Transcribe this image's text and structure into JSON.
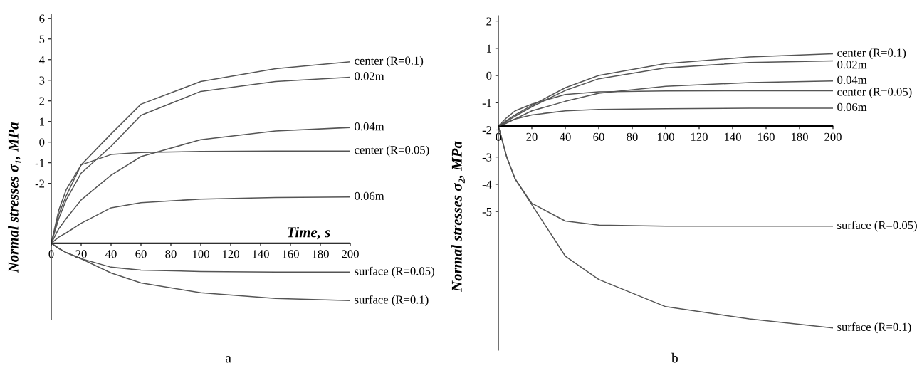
{
  "chart_data": [
    {
      "type": "line",
      "xlabel": "Time, s",
      "ylabel": "Normal stresses σ₁, MPa",
      "annotations": [
        "a"
      ],
      "x": [
        0,
        5,
        10,
        20,
        40,
        60,
        100,
        150,
        200
      ],
      "xlim": [
        0,
        200
      ],
      "xticks": [
        0,
        20,
        40,
        60,
        80,
        100,
        120,
        140,
        160,
        180,
        200
      ],
      "ylim": [
        -8.6,
        6.2
      ],
      "yticks": [
        -2,
        -1,
        0,
        1,
        2,
        3,
        4,
        5,
        6
      ],
      "grid": false,
      "legend": false,
      "marker": "none",
      "line_style": "solid",
      "ref_lines": [
        {
          "axis": "y",
          "value": -4.9,
          "color": "#000000"
        }
      ],
      "series": [
        {
          "name": "center (R=0.1)",
          "color": "#555555",
          "values": [
            -4.9,
            -3.5,
            -2.6,
            -1.1,
            0.4,
            1.84,
            2.94,
            3.56,
            3.9
          ]
        },
        {
          "name": "0.02m",
          "color": "#555555",
          "values": [
            -4.9,
            -3.7,
            -2.8,
            -1.5,
            -0.2,
            1.3,
            2.46,
            2.94,
            3.15
          ]
        },
        {
          "name": "0.04m",
          "color": "#555555",
          "values": [
            -4.9,
            -4.2,
            -3.7,
            -2.8,
            -1.6,
            -0.7,
            0.12,
            0.54,
            0.71
          ]
        },
        {
          "name": "center (R=0.05)",
          "color": "#555555",
          "values": [
            -4.9,
            -3.3,
            -2.3,
            -1.1,
            -0.6,
            -0.5,
            -0.45,
            -0.43,
            -0.43
          ]
        },
        {
          "name": "0.06m",
          "color": "#555555",
          "values": [
            -4.9,
            -4.6,
            -4.4,
            -3.93,
            -3.18,
            -2.93,
            -2.76,
            -2.68,
            -2.66
          ]
        },
        {
          "name": "surface (R=0.05)",
          "color": "#555555",
          "values": [
            -4.9,
            -5.15,
            -5.35,
            -5.65,
            -6.06,
            -6.2,
            -6.27,
            -6.3,
            -6.3
          ]
        },
        {
          "name": "surface (R=0.1)",
          "color": "#555555",
          "values": [
            -4.9,
            -5.15,
            -5.35,
            -5.65,
            -6.34,
            -6.82,
            -7.3,
            -7.57,
            -7.68
          ]
        }
      ]
    },
    {
      "type": "line",
      "ylabel": "Normal stresses σ₂, MPa",
      "annotations": [
        "b"
      ],
      "x": [
        0,
        5,
        10,
        20,
        40,
        60,
        100,
        150,
        200
      ],
      "xlim": [
        0,
        200
      ],
      "xticks": [
        0,
        20,
        40,
        60,
        80,
        100,
        120,
        140,
        160,
        180,
        200
      ],
      "ylim": [
        -10.1,
        2.2
      ],
      "yticks": [
        -5,
        -4,
        -3,
        -2,
        -1,
        0,
        1,
        2
      ],
      "grid": false,
      "legend": false,
      "marker": "none",
      "line_style": "solid",
      "ref_lines": [
        {
          "axis": "y",
          "value": -1.86,
          "color": "#000000"
        }
      ],
      "series": [
        {
          "name": "center (R=0.1)",
          "color": "#555555",
          "values": [
            -1.86,
            -1.65,
            -1.45,
            -1.1,
            -0.45,
            0.0,
            0.44,
            0.68,
            0.8
          ]
        },
        {
          "name": "0.02m",
          "color": "#555555",
          "values": [
            -1.86,
            -1.68,
            -1.5,
            -1.15,
            -0.55,
            -0.12,
            0.28,
            0.48,
            0.54
          ]
        },
        {
          "name": "0.04m",
          "color": "#555555",
          "values": [
            -1.86,
            -1.75,
            -1.6,
            -1.3,
            -0.95,
            -0.65,
            -0.4,
            -0.26,
            -0.2
          ]
        },
        {
          "name": "center (R=0.05)",
          "color": "#555555",
          "values": [
            -1.86,
            -1.55,
            -1.3,
            -1.05,
            -0.7,
            -0.6,
            -0.57,
            -0.56,
            -0.56
          ]
        },
        {
          "name": "0.06m",
          "color": "#555555",
          "values": [
            -1.86,
            -1.72,
            -1.6,
            -1.45,
            -1.3,
            -1.25,
            -1.22,
            -1.2,
            -1.2
          ]
        },
        {
          "name": "surface (R=0.05)",
          "color": "#555555",
          "values": [
            -1.86,
            -3.0,
            -3.8,
            -4.7,
            -5.35,
            -5.5,
            -5.54,
            -5.54,
            -5.54
          ]
        },
        {
          "name": "surface (R=0.1)",
          "color": "#555555",
          "values": [
            -1.86,
            -3.0,
            -3.8,
            -4.75,
            -6.64,
            -7.5,
            -8.5,
            -8.95,
            -9.28
          ]
        }
      ]
    }
  ]
}
